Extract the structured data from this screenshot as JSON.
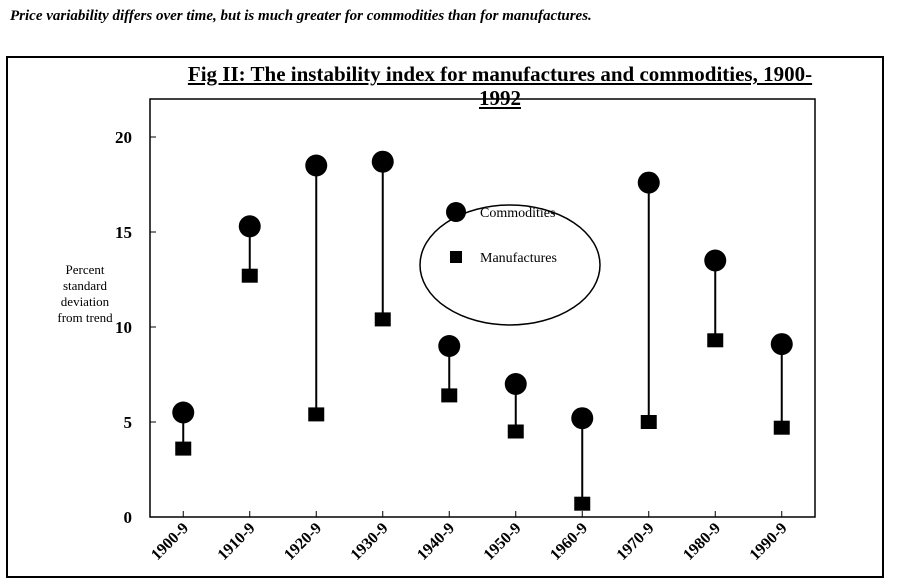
{
  "caption": "Price variability differs over time, but is much greater for commodities than for manufactures.",
  "chart_data": {
    "type": "dot-range",
    "title": "Fig II: The instability index for manufactures and commodities, 1900-1992",
    "y_label": "Percent standard deviation from trend",
    "categories": [
      "1900-9",
      "1910-9",
      "1920-9",
      "1930-9",
      "1940-9",
      "1950-9",
      "1960-9",
      "1970-9",
      "1980-9",
      "1990-9"
    ],
    "series": [
      {
        "name": "Commodities",
        "color": "#000000",
        "marker": "circle",
        "values": [
          5.5,
          15.3,
          18.5,
          18.7,
          9.0,
          7.0,
          5.2,
          17.6,
          13.5,
          9.1
        ]
      },
      {
        "name": "Manufactures",
        "color": "#000000",
        "marker": "square",
        "values": [
          3.6,
          12.7,
          5.4,
          10.4,
          6.4,
          4.5,
          0.7,
          5.0,
          9.3,
          4.7
        ]
      }
    ],
    "ylim": [
      0,
      22
    ],
    "yticks": [
      0,
      5,
      10,
      15,
      20
    ]
  }
}
